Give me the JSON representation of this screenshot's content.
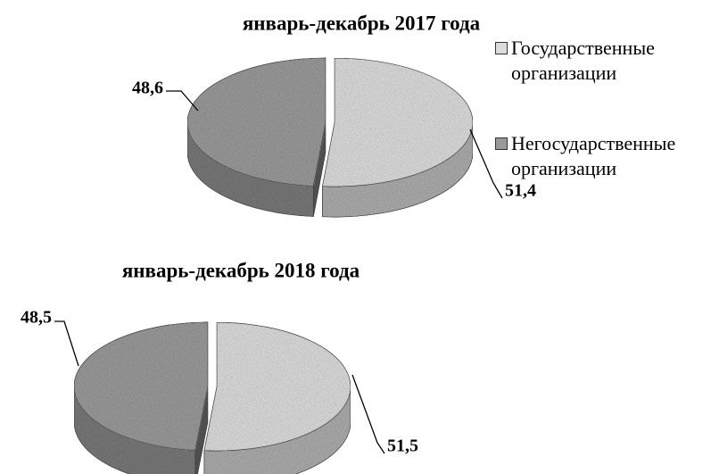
{
  "chart_data": [
    {
      "type": "pie",
      "title": "январь-декабрь 2017 года",
      "categories": [
        "Государственные организации",
        "Негосударственные организации"
      ],
      "values": [
        51.4,
        48.6
      ],
      "value_labels": [
        "51,4",
        "48,6"
      ],
      "colors": [
        "#dcdcdc",
        "#9a9a9a"
      ],
      "legend": "right"
    },
    {
      "type": "pie",
      "title": "январь-декабрь 2018 года",
      "values": [
        51.5,
        48.5
      ],
      "value_labels": [
        "51,5",
        "48,5"
      ],
      "colors": [
        "#dcdcdc",
        "#9a9a9a"
      ]
    }
  ]
}
